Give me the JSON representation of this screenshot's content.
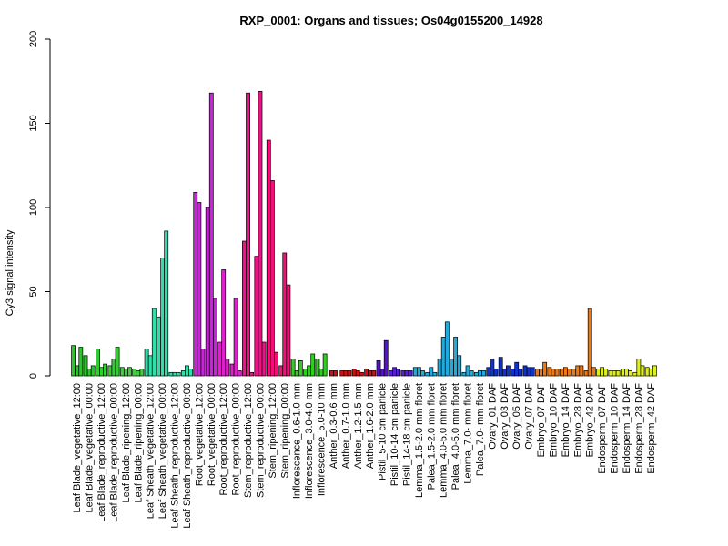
{
  "chart_data": {
    "type": "bar",
    "title": "RXP_0001: Organs and tissues; Os04g0155200_14928",
    "xlabel": "",
    "ylabel": "Cy3 signal intensity",
    "ylim": [
      0,
      200
    ],
    "yticks": [
      0,
      50,
      100,
      150,
      200
    ],
    "grid": false,
    "legend": "none",
    "groups": [
      {
        "label": "Leaf Blade_vegetative_12:00",
        "color": "#22cc22",
        "values": [
          18,
          6,
          17
        ]
      },
      {
        "label": "Leaf Blade_vegetative_00:00",
        "color": "#22cc22",
        "values": [
          12,
          4,
          6
        ]
      },
      {
        "label": "Leaf Blade_reproductive_12:00",
        "color": "#33cc33",
        "values": [
          16,
          5,
          7
        ]
      },
      {
        "label": "Leaf Blade_reproductive_00:00",
        "color": "#33cc33",
        "values": [
          6,
          10,
          17
        ]
      },
      {
        "label": "Leaf Blade_ripening_12:00",
        "color": "#44cc44",
        "values": [
          5,
          4,
          5
        ]
      },
      {
        "label": "Leaf Blade_ripening_00:00",
        "color": "#44cc44",
        "values": [
          4,
          3,
          4
        ]
      },
      {
        "label": "Leaf Sheath_vegetative_12:00",
        "color": "#33ddaa",
        "values": [
          16,
          12,
          40
        ]
      },
      {
        "label": "Leaf Sheath_vegetative_00:00",
        "color": "#33ddaa",
        "values": [
          35,
          70,
          86
        ]
      },
      {
        "label": "Leaf Sheath_reproductive_12:00",
        "color": "#33ddaa",
        "values": [
          2,
          2,
          2
        ]
      },
      {
        "label": "Leaf Sheath_reproductive_00:00",
        "color": "#33ddaa",
        "values": [
          3,
          6,
          4
        ]
      },
      {
        "label": "Root_vegetative_12:00",
        "color": "#cc22dd",
        "values": [
          109,
          103,
          16
        ]
      },
      {
        "label": "Root_vegetative_00:00",
        "color": "#cc22dd",
        "values": [
          100,
          168,
          46
        ]
      },
      {
        "label": "Root_reproductive_12:00",
        "color": "#dd22cc",
        "values": [
          20,
          63,
          10
        ]
      },
      {
        "label": "Root_reproductive_00:00",
        "color": "#dd22cc",
        "values": [
          7,
          46,
          3
        ]
      },
      {
        "label": "Stem_reproductive_12:00",
        "color": "#ee1188",
        "values": [
          80,
          168,
          2
        ]
      },
      {
        "label": "Stem_reproductive_00:00",
        "color": "#ee1188",
        "values": [
          71,
          169,
          20
        ]
      },
      {
        "label": "Stem_ripening_12:00",
        "color": "#ee1177",
        "values": [
          140,
          116,
          14
        ]
      },
      {
        "label": "Stem_ripening_00:00",
        "color": "#ee1177",
        "values": [
          6,
          73,
          54
        ]
      },
      {
        "label": "Inflorescence_0.6-1.0 mm",
        "color": "#33cc22",
        "values": [
          10,
          3,
          9
        ]
      },
      {
        "label": "Inflorescence_3.0-4.0 mm",
        "color": "#33cc22",
        "values": [
          4,
          6,
          13
        ]
      },
      {
        "label": "Inflorescence_5.0-10 mm",
        "color": "#33cc22",
        "values": [
          10,
          4,
          13
        ]
      },
      {
        "label": "Anther_0.3-0.6 mm",
        "color": "#cc1111",
        "values": [
          3,
          3
        ]
      },
      {
        "label": "Anther_0.7-1.0 mm",
        "color": "#cc1111",
        "values": [
          3,
          3,
          3
        ]
      },
      {
        "label": "Anther_1.2-1.5 mm",
        "color": "#cc1111",
        "values": [
          4,
          3,
          2
        ]
      },
      {
        "label": "Anther_1.6-2.0 mm",
        "color": "#cc1111",
        "values": [
          4,
          3,
          3
        ]
      },
      {
        "label": "Pistil_5-10 cm panicle",
        "color": "#5511cc",
        "values": [
          9,
          4,
          21
        ]
      },
      {
        "label": "Pistil_10-14 cm panicle",
        "color": "#5522cc",
        "values": [
          3,
          5,
          4
        ]
      },
      {
        "label": "Pistil_14-18 cm panicle",
        "color": "#5522cc",
        "values": [
          3,
          3,
          3
        ]
      },
      {
        "label": "Lemma_1.5-2.0 mm floret",
        "color": "#22aadd",
        "values": [
          5,
          5,
          3
        ]
      },
      {
        "label": "Palea_1.5-2.0 mm floret",
        "color": "#22aadd",
        "values": [
          2,
          5,
          2
        ]
      },
      {
        "label": "Lemma_4.0-5.0 mm floret",
        "color": "#22aadd",
        "values": [
          10,
          23,
          32
        ]
      },
      {
        "label": "Palea_4.0-5.0 mm floret",
        "color": "#22aadd",
        "values": [
          10,
          23,
          12
        ]
      },
      {
        "label": "Lemma_7.0- mm floret",
        "color": "#22aadd",
        "values": [
          2,
          6,
          3
        ]
      },
      {
        "label": "Palea_7.0- mm floret",
        "color": "#22aadd",
        "values": [
          2,
          3,
          3
        ]
      },
      {
        "label": "Ovary_01 DAF",
        "color": "#1133cc",
        "values": [
          5,
          10,
          4
        ]
      },
      {
        "label": "Ovary_03 DAF",
        "color": "#1133cc",
        "values": [
          11,
          4,
          6
        ]
      },
      {
        "label": "Ovary_05 DAF",
        "color": "#1133cc",
        "values": [
          4,
          8,
          4
        ]
      },
      {
        "label": "Ovary_07 DAF",
        "color": "#1133cc",
        "values": [
          6,
          5,
          5
        ]
      },
      {
        "label": "Embryo_07 DAF",
        "color": "#ee7711",
        "values": [
          4,
          4,
          8
        ]
      },
      {
        "label": "Embryo_10 DAF",
        "color": "#ee7711",
        "values": [
          5,
          4,
          4
        ]
      },
      {
        "label": "Embryo_14 DAF",
        "color": "#ee7711",
        "values": [
          4,
          5,
          4
        ]
      },
      {
        "label": "Embryo_28 DAF",
        "color": "#ee7711",
        "values": [
          4,
          6,
          6
        ]
      },
      {
        "label": "Embryo_42 DAF",
        "color": "#ee7711",
        "values": [
          3,
          40,
          5
        ]
      },
      {
        "label": "Endosperm_07 DAF",
        "color": "#ddee22",
        "values": [
          4,
          5,
          4
        ]
      },
      {
        "label": "Endosperm_10 DAF",
        "color": "#ddee22",
        "values": [
          3,
          3,
          3
        ]
      },
      {
        "label": "Endosperm_14 DAF",
        "color": "#ddee22",
        "values": [
          4,
          4,
          3
        ]
      },
      {
        "label": "Endosperm_28 DAF",
        "color": "#ddee22",
        "values": [
          2,
          10,
          6
        ]
      },
      {
        "label": "Endosperm_42 DAF",
        "color": "#ddee22",
        "values": [
          5,
          4,
          6
        ]
      }
    ]
  }
}
